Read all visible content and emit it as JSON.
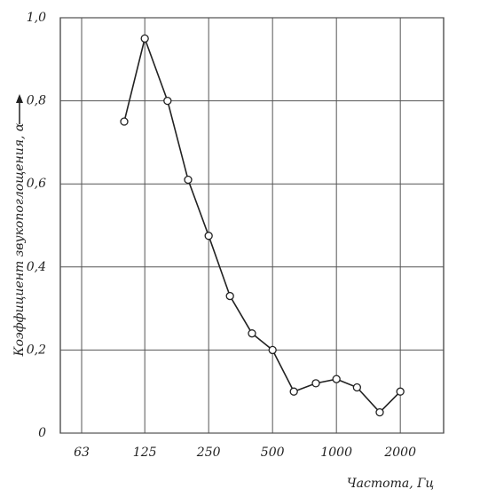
{
  "chart_data": {
    "type": "line",
    "y_label": "Коэффициент звукопоглощения, α",
    "x_label": "Частота, Гц",
    "x": [
      100,
      125,
      160,
      200,
      250,
      315,
      400,
      500,
      630,
      800,
      1000,
      1250,
      1600,
      2000
    ],
    "series": [
      {
        "color": "#222222",
        "values": [
          0.75,
          0.95,
          0.8,
          0.61,
          0.475,
          0.33,
          0.24,
          0.2,
          0.1,
          0.12,
          0.13,
          0.11,
          0.05,
          0.1
        ]
      }
    ],
    "xlim": [
      50,
      3200
    ],
    "xscale": "log",
    "xticks": [
      63,
      125,
      250,
      500,
      1000,
      2000
    ],
    "ylim": [
      0,
      1.0
    ],
    "yticks": [
      0,
      {
        "value": 0.2,
        "label": "0,2"
      },
      {
        "value": 0.4,
        "label": "0,4"
      },
      {
        "value": 0.6,
        "label": "0,6"
      },
      {
        "value": 0.8,
        "label": "0,8"
      },
      {
        "value": 1.0,
        "label": "1,0"
      }
    ],
    "grid": true
  }
}
